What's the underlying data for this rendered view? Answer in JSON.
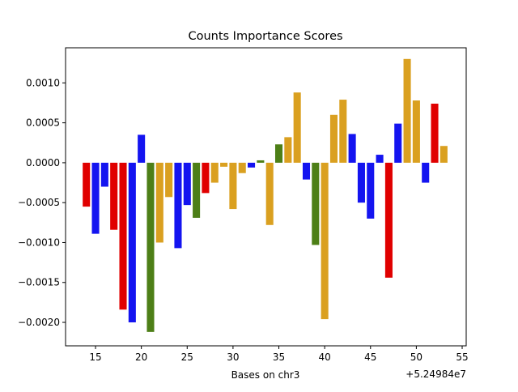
{
  "chart_data": {
    "type": "bar",
    "title": "Counts Importance Scores",
    "x_label": "Bases on chr3",
    "x_offset_label": "+5.24984e7",
    "x": [
      14,
      15,
      16,
      17,
      18,
      19,
      20,
      21,
      22,
      23,
      24,
      25,
      26,
      27,
      28,
      29,
      30,
      31,
      32,
      33,
      34,
      35,
      36,
      37,
      38,
      39,
      40,
      41,
      42,
      43,
      44,
      45,
      46,
      47,
      48,
      49,
      50,
      51,
      52,
      53
    ],
    "values": [
      -0.00055,
      -0.00089,
      -0.0003,
      -0.00084,
      -0.00184,
      -0.002,
      0.00035,
      -0.00212,
      -0.001,
      -0.00043,
      -0.00107,
      -0.00053,
      -0.00069,
      -0.00038,
      -0.00025,
      -5e-05,
      -0.00058,
      -0.00013,
      -6e-05,
      3e-05,
      -0.00078,
      0.00023,
      0.00032,
      0.00088,
      -0.00021,
      -0.00103,
      -0.00196,
      0.0006,
      0.00079,
      0.00036,
      -0.0005,
      -0.0007,
      0.0001,
      -0.00144,
      0.00049,
      0.0013,
      0.00078,
      -0.00025,
      0.00074,
      0.00021
    ],
    "colors": [
      "#e00000",
      "#1414f0",
      "#1414f0",
      "#e00000",
      "#e00000",
      "#1414f0",
      "#1414f0",
      "#4d7f17",
      "#daa020",
      "#daa020",
      "#1414f0",
      "#1414f0",
      "#4d7f17",
      "#e00000",
      "#daa020",
      "#daa020",
      "#daa020",
      "#daa020",
      "#1414f0",
      "#4d7f17",
      "#daa020",
      "#4d7f17",
      "#daa020",
      "#daa020",
      "#1414f0",
      "#4d7f17",
      "#daa020",
      "#daa020",
      "#daa020",
      "#1414f0",
      "#1414f0",
      "#1414f0",
      "#1414f0",
      "#e00000",
      "#1414f0",
      "#daa020",
      "#daa020",
      "#1414f0",
      "#e00000",
      "#daa020"
    ],
    "xlim": [
      11.73,
      55.44
    ],
    "ylim": [
      -0.002294,
      0.00144
    ],
    "xticks": [
      15,
      20,
      25,
      30,
      35,
      40,
      45,
      50,
      55
    ],
    "yticks": [
      {
        "value": -0.002,
        "label": "−0.0020"
      },
      {
        "value": -0.0015,
        "label": "−0.0015"
      },
      {
        "value": -0.001,
        "label": "−0.0010"
      },
      {
        "value": -0.0005,
        "label": "−0.0005"
      },
      {
        "value": 0,
        "label": "0.0000"
      },
      {
        "value": 0.0005,
        "label": "0.0005"
      },
      {
        "value": 0.001,
        "label": "0.0010"
      }
    ]
  }
}
